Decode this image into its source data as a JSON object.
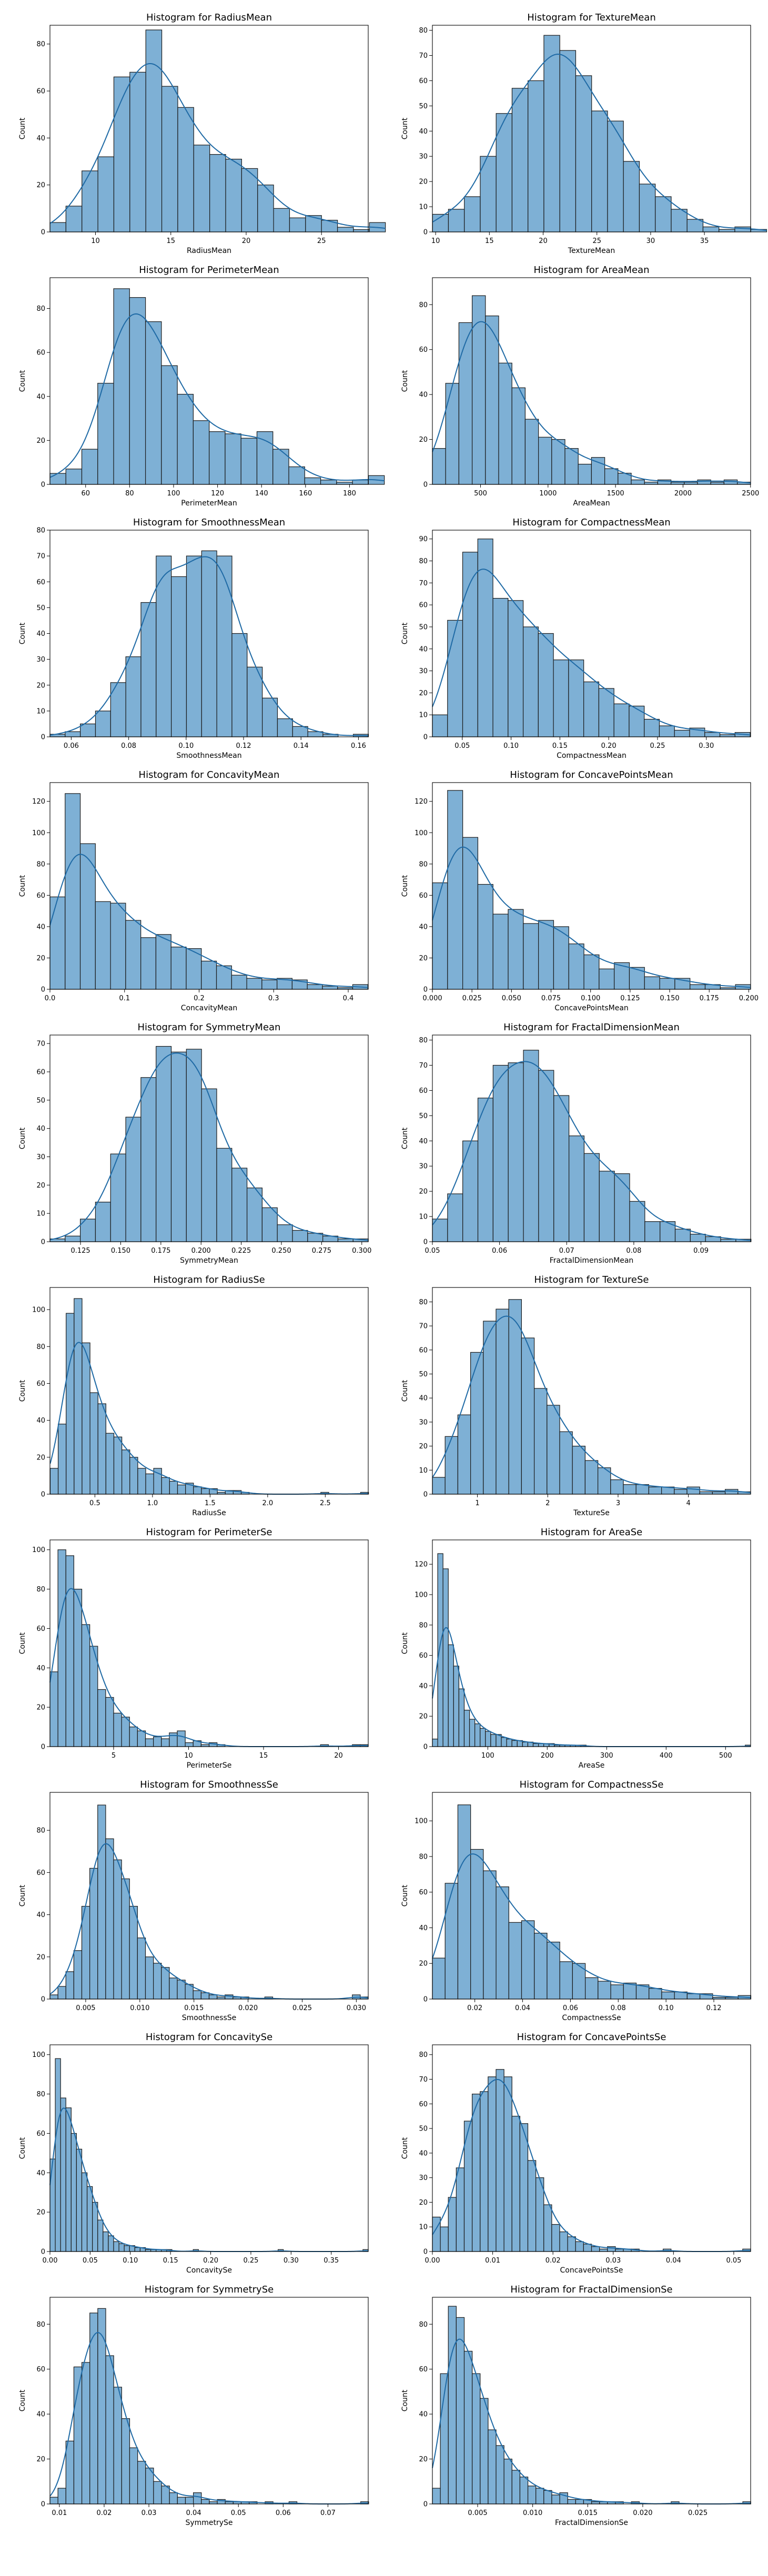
{
  "style": {
    "bar_fill": "#7eb0d5",
    "bar_stroke": "#1a1a1a",
    "kde_color": "#1f6aa5",
    "axis_color": "#000000"
  },
  "chart_data": [
    {
      "type": "bar",
      "title": "Histogram for RadiusMean",
      "xlabel": "RadiusMean",
      "ylabel": "Count",
      "xlim": [
        6.98,
        28.1
      ],
      "ylim": [
        0,
        88
      ],
      "xticks": [
        10,
        15,
        20,
        25
      ],
      "yticks": [
        0,
        20,
        40,
        60,
        80
      ],
      "bin_start": 6.98,
      "bin_width": 1.06,
      "values": [
        4,
        11,
        26,
        32,
        66,
        68,
        86,
        62,
        53,
        37,
        33,
        31,
        27,
        20,
        10,
        6,
        7,
        5,
        2,
        1,
        4
      ]
    },
    {
      "type": "bar",
      "title": "Histogram for TextureMean",
      "xlabel": "TextureMean",
      "ylabel": "Count",
      "xlim": [
        9.7,
        39.3
      ],
      "ylim": [
        0,
        82
      ],
      "xticks": [
        10,
        15,
        20,
        25,
        30,
        35,
        40
      ],
      "yticks": [
        0,
        10,
        20,
        30,
        40,
        50,
        60,
        70,
        80
      ],
      "bin_start": 9.71,
      "bin_width": 1.48,
      "values": [
        7,
        9,
        14,
        30,
        47,
        57,
        60,
        78,
        72,
        62,
        48,
        44,
        28,
        19,
        14,
        9,
        5,
        2,
        1,
        2,
        1
      ]
    },
    {
      "type": "bar",
      "title": "Histogram for PerimeterMean",
      "xlabel": "PerimeterMean",
      "ylabel": "Count",
      "xlim": [
        43.8,
        188.5
      ],
      "ylim": [
        0,
        94
      ],
      "xticks": [
        40,
        60,
        80,
        100,
        120,
        140,
        160,
        180
      ],
      "yticks": [
        0,
        20,
        40,
        60,
        80
      ],
      "bin_start": 43.79,
      "bin_width": 7.24,
      "values": [
        5,
        7,
        16,
        46,
        89,
        85,
        74,
        54,
        41,
        29,
        24,
        23,
        21,
        24,
        16,
        8,
        3,
        2,
        1,
        2,
        4
      ]
    },
    {
      "type": "bar",
      "title": "Histogram for AreaMean",
      "xlabel": "AreaMean",
      "ylabel": "Count",
      "xlim": [
        143.5,
        2501
      ],
      "ylim": [
        0,
        92
      ],
      "xticks": [
        500,
        1000,
        1500,
        2000,
        2500
      ],
      "yticks": [
        0,
        20,
        40,
        60,
        80
      ],
      "bin_start": 143.5,
      "bin_width": 98.2,
      "values": [
        16,
        45,
        72,
        84,
        75,
        54,
        43,
        29,
        21,
        20,
        16,
        9,
        12,
        7,
        5,
        2,
        1,
        2,
        1,
        1,
        2,
        1,
        2,
        1
      ]
    },
    {
      "type": "bar",
      "title": "Histogram for SmoothnessMean",
      "xlabel": "SmoothnessMean",
      "ylabel": "Count",
      "xlim": [
        0.0526,
        0.1634
      ],
      "ylim": [
        0,
        80
      ],
      "xticks": [
        0.06,
        0.08,
        0.1,
        0.12,
        0.14,
        0.16
      ],
      "yticks": [
        0,
        10,
        20,
        30,
        40,
        50,
        60,
        70,
        80
      ],
      "bin_start": 0.0526,
      "bin_width": 0.00528,
      "values": [
        1,
        2,
        5,
        10,
        21,
        31,
        52,
        70,
        62,
        70,
        72,
        70,
        40,
        27,
        15,
        7,
        4,
        2,
        1,
        0,
        1
      ]
    },
    {
      "type": "bar",
      "title": "Histogram for CompactnessMean",
      "xlabel": "CompactnessMean",
      "ylabel": "Count",
      "xlim": [
        0.0194,
        0.3454
      ],
      "ylim": [
        0,
        94
      ],
      "xticks": [
        0.05,
        0.1,
        0.15,
        0.2,
        0.25,
        0.3,
        0.35
      ],
      "yticks": [
        0,
        10,
        20,
        30,
        40,
        50,
        60,
        70,
        80,
        90
      ],
      "bin_start": 0.0194,
      "bin_width": 0.0155,
      "values": [
        10,
        53,
        84,
        90,
        63,
        62,
        50,
        47,
        35,
        35,
        25,
        22,
        15,
        14,
        8,
        5,
        3,
        4,
        2,
        1,
        2
      ]
    },
    {
      "type": "bar",
      "title": "Histogram for ConcavityMean",
      "xlabel": "ConcavityMean",
      "ylabel": "Count",
      "xlim": [
        0,
        0.4268
      ],
      "ylim": [
        0,
        132
      ],
      "xticks": [
        0,
        0.1,
        0.2,
        0.3,
        0.4
      ],
      "yticks": [
        0,
        20,
        40,
        60,
        80,
        100,
        120
      ],
      "bin_start": 0,
      "bin_width": 0.0203,
      "values": [
        59,
        125,
        93,
        56,
        55,
        44,
        33,
        35,
        27,
        26,
        18,
        15,
        9,
        7,
        6,
        7,
        6,
        3,
        2,
        1,
        3
      ]
    },
    {
      "type": "bar",
      "title": "Histogram for ConcavePointsMean",
      "xlabel": "ConcavePointsMean",
      "ylabel": "Count",
      "xlim": [
        0,
        0.2012
      ],
      "ylim": [
        0,
        132
      ],
      "xticks": [
        0,
        0.025,
        0.05,
        0.075,
        0.1,
        0.125,
        0.15,
        0.175,
        0.2
      ],
      "yticks": [
        0,
        20,
        40,
        60,
        80,
        100,
        120
      ],
      "bin_start": 0,
      "bin_width": 0.00958,
      "values": [
        68,
        127,
        97,
        67,
        48,
        51,
        42,
        44,
        40,
        29,
        22,
        13,
        17,
        14,
        8,
        7,
        7,
        3,
        3,
        1,
        3
      ]
    },
    {
      "type": "bar",
      "title": "Histogram for SymmetryMean",
      "xlabel": "SymmetryMean",
      "ylabel": "Count",
      "xlim": [
        0.106,
        0.304
      ],
      "ylim": [
        0,
        73
      ],
      "xticks": [
        0.1,
        0.125,
        0.15,
        0.175,
        0.2,
        0.225,
        0.25,
        0.275,
        0.3
      ],
      "yticks": [
        0,
        10,
        20,
        30,
        40,
        50,
        60,
        70
      ],
      "bin_start": 0.106,
      "bin_width": 0.00943,
      "values": [
        1,
        2,
        8,
        14,
        31,
        44,
        58,
        69,
        67,
        68,
        54,
        33,
        26,
        19,
        12,
        6,
        4,
        3,
        2,
        1,
        1
      ]
    },
    {
      "type": "bar",
      "title": "Histogram for FractalDimensionMean",
      "xlabel": "FractalDimensionMean",
      "ylabel": "Count",
      "xlim": [
        0.05,
        0.0974
      ],
      "ylim": [
        0,
        82
      ],
      "xticks": [
        0.05,
        0.06,
        0.07,
        0.08,
        0.09
      ],
      "yticks": [
        0,
        10,
        20,
        30,
        40,
        50,
        60,
        70,
        80
      ],
      "bin_start": 0.05,
      "bin_width": 0.00226,
      "values": [
        9,
        19,
        40,
        57,
        70,
        71,
        76,
        68,
        58,
        42,
        35,
        28,
        27,
        16,
        8,
        8,
        5,
        3,
        2,
        1,
        1
      ]
    },
    {
      "type": "bar",
      "title": "Histogram for RadiusSe",
      "xlabel": "RadiusSe",
      "ylabel": "Count",
      "xlim": [
        0.11,
        2.873
      ],
      "ylim": [
        0,
        112
      ],
      "xticks": [
        0,
        0.5,
        1,
        1.5,
        2,
        2.5,
        3
      ],
      "yticks": [
        0,
        20,
        40,
        60,
        80,
        100
      ],
      "bin_start": 0.112,
      "bin_width": 0.0691,
      "values": [
        14,
        38,
        98,
        106,
        82,
        55,
        49,
        33,
        31,
        24,
        20,
        14,
        11,
        14,
        9,
        7,
        5,
        6,
        4,
        3,
        3,
        1,
        2,
        2,
        1,
        0,
        0,
        0,
        0,
        0,
        0,
        0,
        0,
        0,
        1,
        0,
        0,
        0,
        0,
        1
      ]
    },
    {
      "type": "bar",
      "title": "Histogram for TextureSe",
      "xlabel": "TextureSe",
      "ylabel": "Count",
      "xlim": [
        0.36,
        4.885
      ],
      "ylim": [
        0,
        86
      ],
      "xticks": [
        1,
        2,
        3,
        4,
        5
      ],
      "yticks": [
        0,
        10,
        20,
        30,
        40,
        50,
        60,
        70,
        80
      ],
      "bin_start": 0.36,
      "bin_width": 0.181,
      "values": [
        7,
        24,
        33,
        59,
        72,
        77,
        81,
        65,
        44,
        37,
        26,
        20,
        14,
        11,
        6,
        4,
        4,
        3,
        3,
        2,
        3,
        1,
        1,
        2,
        1
      ]
    },
    {
      "type": "bar",
      "title": "Histogram for PerimeterSe",
      "xlabel": "PerimeterSe",
      "ylabel": "Count",
      "xlim": [
        0.757,
        21.98
      ],
      "ylim": [
        0,
        105
      ],
      "xticks": [
        0,
        5,
        10,
        15,
        20
      ],
      "yticks": [
        0,
        20,
        40,
        60,
        80,
        100
      ],
      "bin_start": 0.757,
      "bin_width": 0.5306,
      "values": [
        38,
        100,
        97,
        80,
        62,
        51,
        29,
        25,
        17,
        15,
        10,
        8,
        4,
        5,
        4,
        7,
        8,
        2,
        3,
        1,
        2,
        1,
        0,
        0,
        0,
        0,
        0,
        0,
        0,
        0,
        0,
        0,
        0,
        0,
        1,
        0,
        0,
        0,
        1,
        1
      ]
    },
    {
      "type": "bar",
      "title": "Histogram for AreaSe",
      "xlabel": "AreaSe",
      "ylabel": "Count",
      "xlim": [
        6.8,
        542.2
      ],
      "ylim": [
        0,
        136
      ],
      "xticks": [
        0,
        100,
        200,
        300,
        400,
        500
      ],
      "yticks": [
        0,
        20,
        40,
        60,
        80,
        100,
        120
      ],
      "bin_start": 6.8,
      "bin_width": 8.92,
      "values": [
        5,
        127,
        117,
        67,
        53,
        38,
        24,
        18,
        15,
        12,
        10,
        8,
        8,
        6,
        5,
        4,
        4,
        3,
        3,
        2,
        2,
        2,
        2,
        1,
        1,
        1,
        1,
        1,
        1,
        0,
        0,
        0,
        0,
        0,
        0,
        0,
        0,
        0,
        0,
        0,
        0,
        0,
        0,
        0,
        0,
        0,
        0,
        0,
        0,
        0,
        0,
        0,
        0,
        0,
        0,
        0,
        0,
        0,
        0,
        1
      ]
    },
    {
      "type": "bar",
      "title": "Histogram for SmoothnessSe",
      "xlabel": "SmoothnessSe",
      "ylabel": "Count",
      "xlim": [
        0.0017,
        0.0311
      ],
      "ylim": [
        0,
        98
      ],
      "xticks": [
        0.005,
        0.01,
        0.015,
        0.02,
        0.025,
        0.03
      ],
      "yticks": [
        0,
        20,
        40,
        60,
        80
      ],
      "bin_start": 0.0017,
      "bin_width": 0.000735,
      "values": [
        2,
        6,
        13,
        23,
        44,
        62,
        92,
        76,
        66,
        57,
        44,
        29,
        20,
        17,
        15,
        10,
        9,
        7,
        4,
        3,
        2,
        1,
        2,
        1,
        1,
        0,
        0,
        1,
        0,
        0,
        0,
        0,
        0,
        0,
        0,
        0,
        0,
        0,
        2,
        1
      ]
    },
    {
      "type": "bar",
      "title": "Histogram for CompactnessSe",
      "xlabel": "CompactnessSe",
      "ylabel": "Count",
      "xlim": [
        0.00225,
        0.1354
      ],
      "ylim": [
        0,
        116
      ],
      "xticks": [
        0,
        0.02,
        0.04,
        0.06,
        0.08,
        0.1,
        0.12,
        0.14
      ],
      "yticks": [
        0,
        20,
        40,
        60,
        80,
        100
      ],
      "bin_start": 0.00225,
      "bin_width": 0.00533,
      "values": [
        23,
        65,
        109,
        84,
        72,
        63,
        43,
        44,
        37,
        32,
        21,
        20,
        12,
        10,
        8,
        9,
        8,
        6,
        4,
        4,
        3,
        3,
        1,
        1,
        2
      ]
    },
    {
      "type": "bar",
      "title": "Histogram for ConcavitySe",
      "xlabel": "ConcavitySe",
      "ylabel": "Count",
      "xlim": [
        0,
        0.396
      ],
      "ylim": [
        0,
        105
      ],
      "xticks": [
        0,
        0.05,
        0.1,
        0.15,
        0.2,
        0.25,
        0.3,
        0.35,
        0.4
      ],
      "yticks": [
        0,
        20,
        40,
        60,
        80,
        100
      ],
      "bin_start": 0,
      "bin_width": 0.0066,
      "values": [
        47,
        98,
        78,
        73,
        60,
        52,
        40,
        33,
        25,
        16,
        10,
        8,
        5,
        4,
        3,
        3,
        2,
        2,
        1,
        1,
        1,
        1,
        1,
        0,
        0,
        0,
        0,
        1,
        0,
        0,
        0,
        0,
        0,
        0,
        0,
        0,
        0,
        0,
        0,
        0,
        0,
        0,
        0,
        1,
        0,
        0,
        0,
        0,
        0,
        0,
        0,
        0,
        0,
        0,
        0,
        0,
        0,
        0,
        0,
        1
      ]
    },
    {
      "type": "bar",
      "title": "Histogram for ConcavePointsSe",
      "xlabel": "ConcavePointsSe",
      "ylabel": "Count",
      "xlim": [
        0,
        0.0528
      ],
      "ylim": [
        0,
        84
      ],
      "xticks": [
        0,
        0.01,
        0.02,
        0.03,
        0.04,
        0.05
      ],
      "yticks": [
        0,
        10,
        20,
        30,
        40,
        50,
        60,
        70,
        80
      ],
      "bin_start": 0,
      "bin_width": 0.00132,
      "values": [
        14,
        10,
        22,
        34,
        53,
        64,
        65,
        71,
        74,
        71,
        55,
        52,
        37,
        30,
        19,
        11,
        8,
        6,
        4,
        3,
        2,
        1,
        2,
        1,
        1,
        1,
        0,
        0,
        0,
        1,
        0,
        0,
        0,
        0,
        0,
        0,
        0,
        0,
        0,
        1
      ]
    },
    {
      "type": "bar",
      "title": "Histogram for SymmetrySe",
      "xlabel": "SymmetrySe",
      "ylabel": "Count",
      "xlim": [
        0.0079,
        0.079
      ],
      "ylim": [
        0,
        92
      ],
      "xticks": [
        0.01,
        0.02,
        0.03,
        0.04,
        0.05,
        0.06,
        0.07,
        0.08
      ],
      "yticks": [
        0,
        20,
        40,
        60,
        80
      ],
      "bin_start": 0.0079,
      "bin_width": 0.00178,
      "values": [
        3,
        7,
        28,
        61,
        63,
        85,
        87,
        66,
        52,
        38,
        25,
        19,
        16,
        10,
        8,
        5,
        3,
        3,
        5,
        2,
        1,
        2,
        1,
        1,
        1,
        1,
        0,
        1,
        0,
        0,
        1,
        0,
        0,
        0,
        0,
        0,
        0,
        0,
        0,
        1
      ]
    },
    {
      "type": "bar",
      "title": "Histogram for FractalDimensionSe",
      "xlabel": "FractalDimensionSe",
      "ylabel": "Count",
      "xlim": [
        0.00089,
        0.0298
      ],
      "ylim": [
        0,
        92
      ],
      "xticks": [
        0,
        0.005,
        0.01,
        0.015,
        0.02,
        0.025,
        0.03
      ],
      "yticks": [
        0,
        20,
        40,
        60,
        80
      ],
      "bin_start": 0.00089,
      "bin_width": 0.000723,
      "values": [
        7,
        58,
        88,
        83,
        68,
        58,
        47,
        33,
        26,
        20,
        15,
        12,
        8,
        7,
        6,
        4,
        5,
        2,
        2,
        2,
        1,
        1,
        1,
        1,
        0,
        1,
        0,
        0,
        0,
        0,
        1,
        0,
        0,
        0,
        0,
        0,
        0,
        0,
        0,
        1
      ]
    }
  ]
}
